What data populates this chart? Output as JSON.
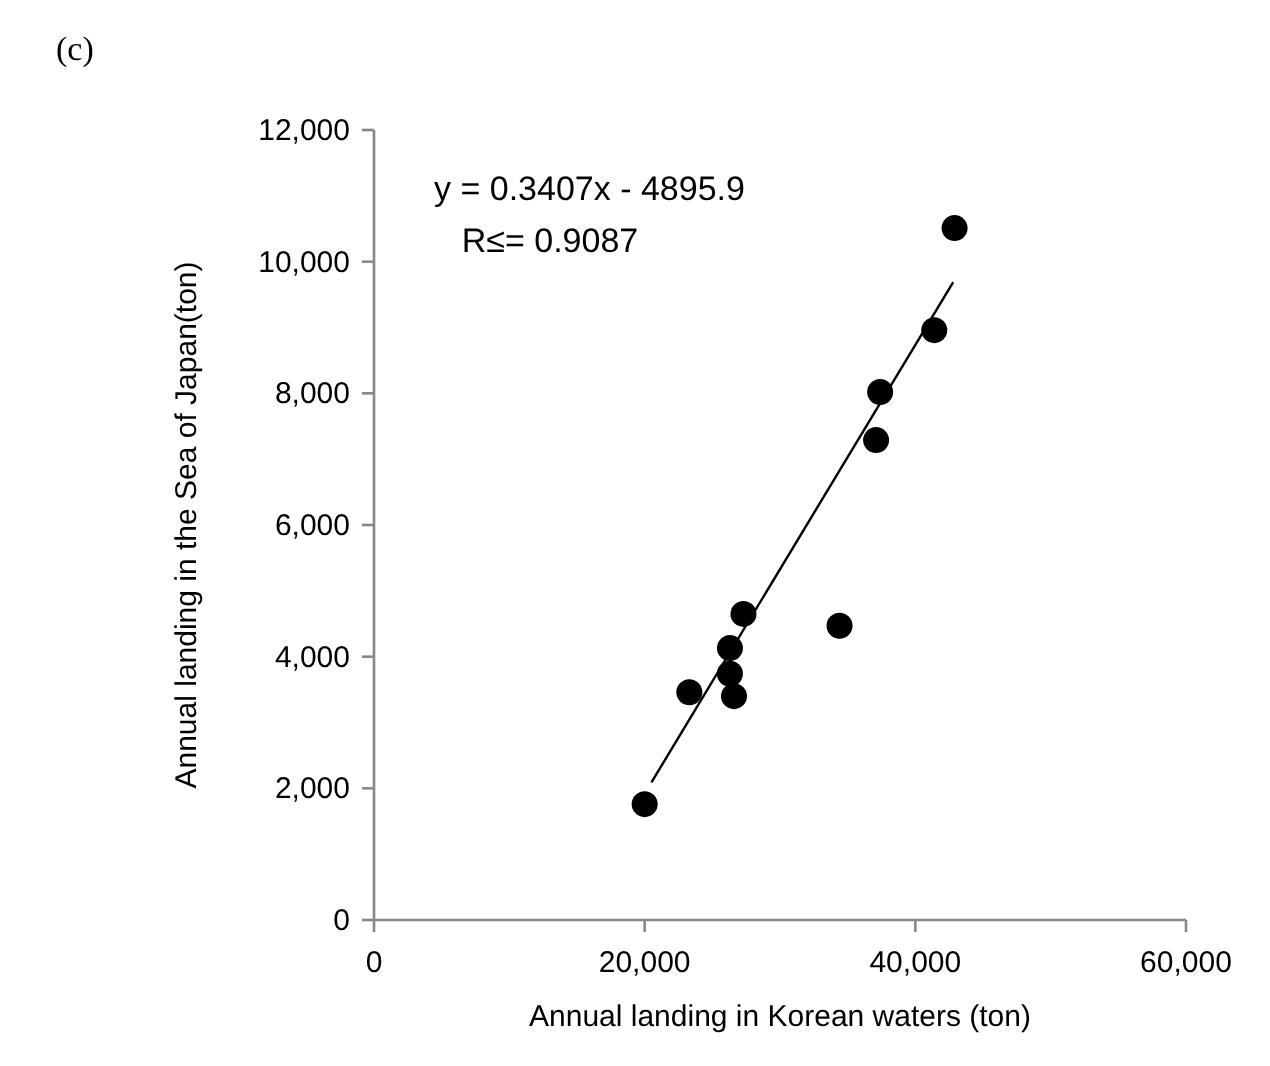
{
  "chart_data": {
    "type": "scatter",
    "title": "(c)",
    "xlabel": "Annual landing in Korean waters (ton)",
    "ylabel": "Annual landing in the Sea of Japan(ton)",
    "xlim": [
      0,
      60000
    ],
    "ylim": [
      0,
      12000
    ],
    "xticks": [
      {
        "value": 0,
        "label": "0"
      },
      {
        "value": 20000,
        "label": "20,000"
      },
      {
        "value": 40000,
        "label": "40,000"
      },
      {
        "value": 60000,
        "label": "60,000"
      }
    ],
    "yticks": [
      {
        "value": 0,
        "label": "0"
      },
      {
        "value": 2000,
        "label": "2,000"
      },
      {
        "value": 4000,
        "label": "4,000"
      },
      {
        "value": 6000,
        "label": "6,000"
      },
      {
        "value": 8000,
        "label": "8,000"
      },
      {
        "value": 10000,
        "label": "10,000"
      },
      {
        "value": 12000,
        "label": "12,000"
      }
    ],
    "grid": false,
    "series": [
      {
        "marker": "circle",
        "color": "#000000",
        "x": [
          20000,
          23300,
          26300,
          26600,
          26300,
          27300,
          34400,
          37100,
          37400,
          41400,
          42900
        ],
        "values": [
          1760,
          3460,
          3740,
          3400,
          4130,
          4650,
          4470,
          7290,
          8020,
          8960,
          10510
        ]
      },
      {
        "type": "line",
        "color": "#000000",
        "x": [
          20500,
          42800
        ],
        "values": [
          2090,
          9690
        ]
      }
    ],
    "annotations": [
      "y = 0.3407x - 4895.9",
      "R≤= 0.9087"
    ]
  }
}
